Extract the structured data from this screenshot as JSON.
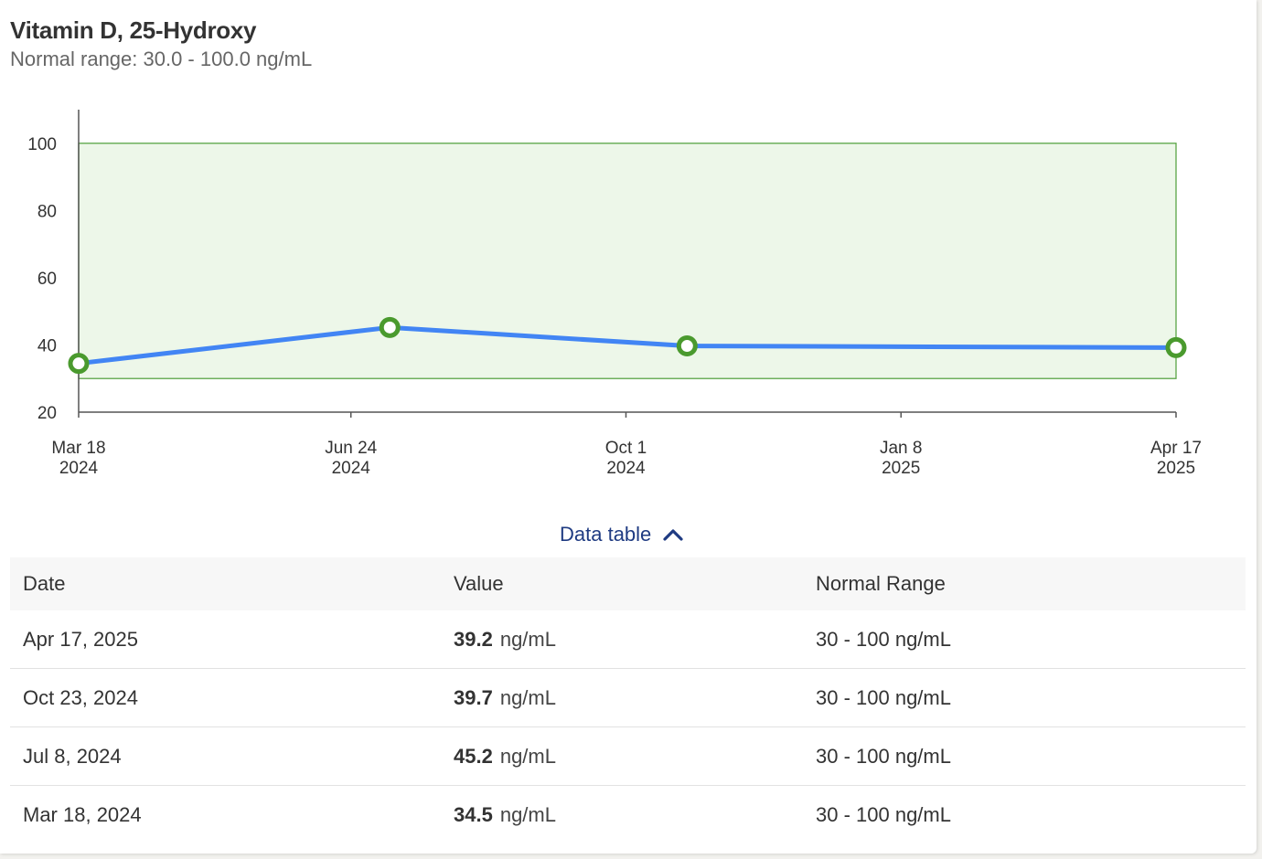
{
  "header": {
    "title": "Vitamin D, 25-Hydroxy",
    "subtitle": "Normal range: 30.0 - 100.0 ng/mL"
  },
  "chart_data": {
    "type": "line",
    "title": "Vitamin D, 25-Hydroxy",
    "xlabel": "",
    "ylabel": "",
    "ylim": [
      20,
      110
    ],
    "y_ticks": [
      "20",
      "40",
      "60",
      "80",
      "100"
    ],
    "x_range": [
      "2024-03-18",
      "2025-04-17"
    ],
    "x_ticks": [
      {
        "date": "2024-03-18",
        "line1": "Mar 18",
        "line2": "2024"
      },
      {
        "date": "2024-06-24",
        "line1": "Jun 24",
        "line2": "2024"
      },
      {
        "date": "2024-10-01",
        "line1": "Oct 1",
        "line2": "2024"
      },
      {
        "date": "2025-01-08",
        "line1": "Jan 8",
        "line2": "2025"
      },
      {
        "date": "2025-04-17",
        "line1": "Apr 17",
        "line2": "2025"
      }
    ],
    "normal_range": [
      30,
      100
    ],
    "series": [
      {
        "x": [
          "2024-03-18",
          "2024-07-08",
          "2024-10-23",
          "2025-04-17"
        ],
        "y": [
          34.5,
          45.2,
          39.7,
          39.2
        ]
      }
    ],
    "colors": {
      "line": "#4285f4",
      "marker": "#4a9a2e",
      "range_fill": "#edf7e9",
      "range_stroke": "#5aa546",
      "axis": "#555555"
    }
  },
  "data_table": {
    "toggle_label": "Data table",
    "toggle_icon": "chevron-up-icon",
    "columns": [
      "Date",
      "Value",
      "Normal Range"
    ],
    "rows": [
      {
        "date": "Apr 17, 2025",
        "value": "39.2",
        "unit": "ng/mL",
        "range": "30 - 100 ng/mL"
      },
      {
        "date": "Oct 23, 2024",
        "value": "39.7",
        "unit": "ng/mL",
        "range": "30 - 100 ng/mL"
      },
      {
        "date": "Jul 8, 2024",
        "value": "45.2",
        "unit": "ng/mL",
        "range": "30 - 100 ng/mL"
      },
      {
        "date": "Mar 18, 2024",
        "value": "34.5",
        "unit": "ng/mL",
        "range": "30 - 100 ng/mL"
      }
    ]
  }
}
